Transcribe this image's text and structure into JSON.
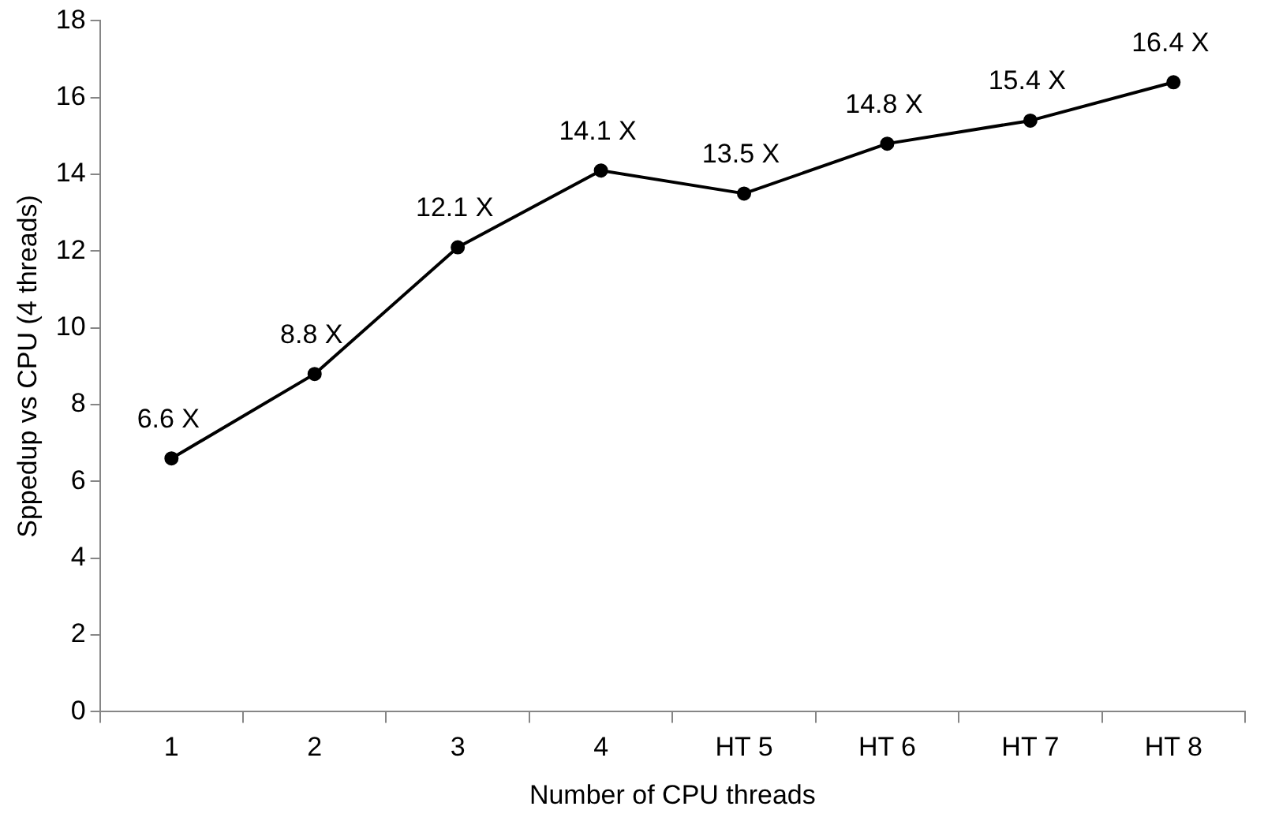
{
  "chart_data": {
    "type": "line",
    "xlabel": "Number of CPU threads",
    "ylabel": "Sppedup vs CPU (4 threads)",
    "categories": [
      "1",
      "2",
      "3",
      "4",
      "HT 5",
      "HT 6",
      "HT 7",
      "HT 8"
    ],
    "series": [
      {
        "color": "#000000",
        "values": [
          6.6,
          8.8,
          12.1,
          14.1,
          13.5,
          14.8,
          15.4,
          16.4
        ],
        "value_labels": [
          "6.6 X",
          "8.8 X",
          "12.1 X",
          "14.1 X",
          "13.5 X",
          "14.8 X",
          "15.4 X",
          "16.4 X"
        ]
      }
    ],
    "ylim": [
      0,
      18
    ],
    "yticks": [
      0,
      2,
      4,
      6,
      8,
      10,
      12,
      14,
      16,
      18
    ],
    "grid": false,
    "legend": false,
    "marker": "circle",
    "line_style": "solid"
  }
}
